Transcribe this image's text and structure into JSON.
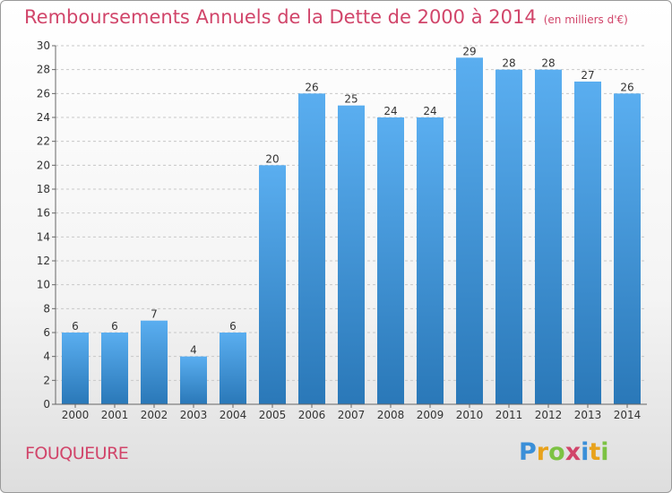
{
  "header": {
    "title": "Remboursements Annuels de la Dette de 2000 à 2014",
    "unit": "(en milliers d'€)"
  },
  "footer": {
    "commune": "FOUQUEURE",
    "logo_letters": [
      {
        "ch": "P",
        "color": "#3a8fd8"
      },
      {
        "ch": "r",
        "color": "#e8a21c"
      },
      {
        "ch": "o",
        "color": "#7cc243"
      },
      {
        "ch": "x",
        "color": "#d1456a"
      },
      {
        "ch": "i",
        "color": "#3a8fd8"
      },
      {
        "ch": "t",
        "color": "#e8a21c"
      },
      {
        "ch": "i",
        "color": "#7cc243"
      }
    ]
  },
  "chart_data": {
    "type": "bar",
    "categories": [
      "2000",
      "2001",
      "2002",
      "2003",
      "2004",
      "2005",
      "2006",
      "2007",
      "2008",
      "2009",
      "2010",
      "2011",
      "2012",
      "2013",
      "2014"
    ],
    "values": [
      6,
      6,
      7,
      4,
      6,
      20,
      26,
      25,
      24,
      24,
      29,
      28,
      28,
      27,
      26
    ],
    "ylim": [
      0,
      30
    ],
    "yticks": [
      0,
      2,
      4,
      6,
      8,
      10,
      12,
      14,
      16,
      18,
      20,
      22,
      24,
      26,
      28,
      30
    ],
    "grid": true,
    "bar_color_top": "#5aaef0",
    "bar_color_bottom": "#2a78b8"
  }
}
